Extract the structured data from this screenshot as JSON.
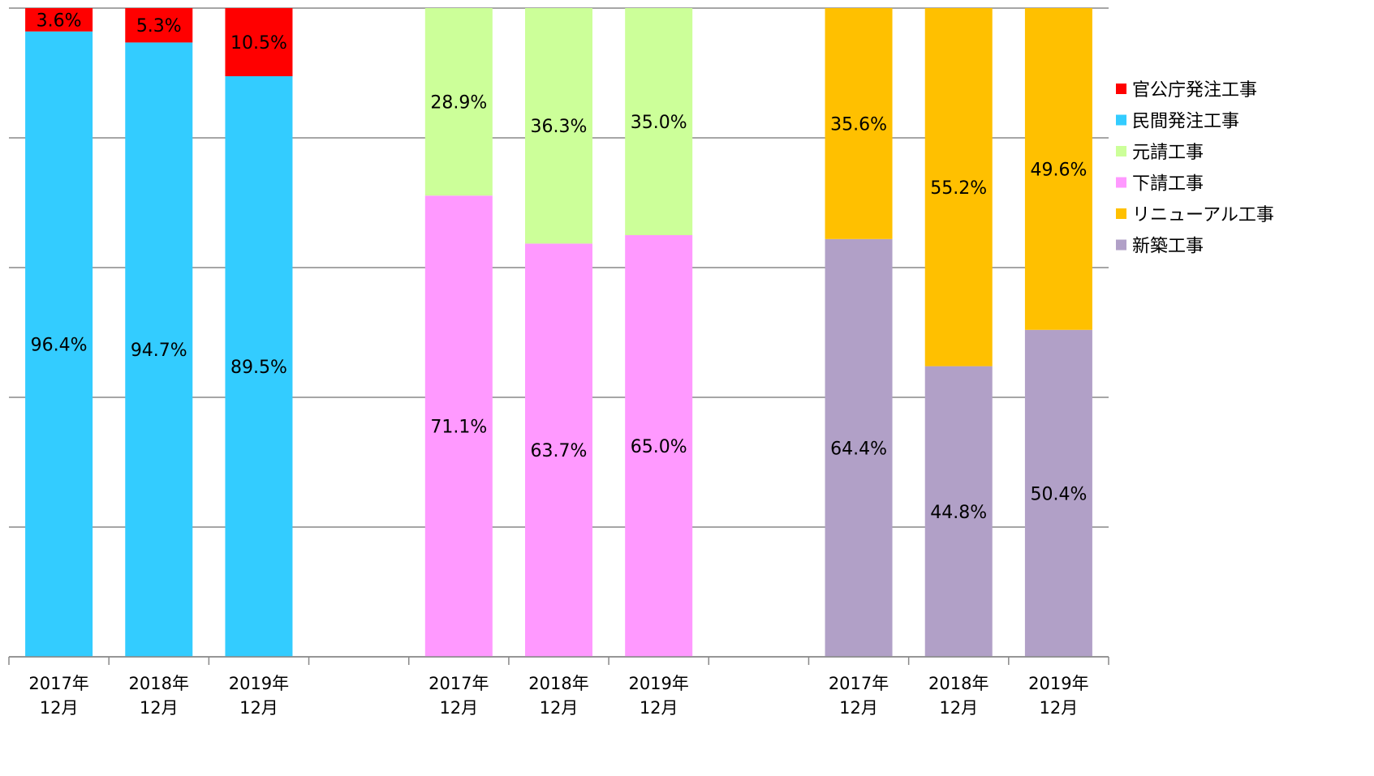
{
  "chart_data": {
    "type": "bar",
    "stacked": true,
    "normalized_100_percent": true,
    "categories": [
      [
        "2017年",
        "12月"
      ],
      [
        "2018年",
        "12月"
      ],
      [
        "2019年",
        "12月"
      ],
      "",
      [
        "2017年",
        "12月"
      ],
      [
        "2018年",
        "12月"
      ],
      [
        "2019年",
        "12月"
      ],
      "",
      [
        "2017年",
        "12月"
      ],
      [
        "2018年",
        "12月"
      ],
      [
        "2019年",
        "12月"
      ]
    ],
    "series": [
      {
        "name": "新築工事",
        "color": "#B1A0C7",
        "values": [
          null,
          null,
          null,
          null,
          null,
          null,
          null,
          null,
          64.4,
          44.8,
          50.4
        ],
        "labels": [
          "",
          "",
          "",
          "",
          "",
          "",
          "",
          "",
          "64.4%",
          "44.8%",
          "50.4%"
        ]
      },
      {
        "name": "リニューアル工事",
        "color": "#FFC000",
        "values": [
          null,
          null,
          null,
          null,
          null,
          null,
          null,
          null,
          35.6,
          55.2,
          49.6
        ],
        "labels": [
          "",
          "",
          "",
          "",
          "",
          "",
          "",
          "",
          "35.6%",
          "55.2%",
          "49.6%"
        ]
      },
      {
        "name": "下請工事",
        "color": "#FF99FF",
        "values": [
          null,
          null,
          null,
          null,
          71.1,
          63.7,
          65.0,
          null,
          null,
          null,
          null
        ],
        "labels": [
          "",
          "",
          "",
          "",
          "71.1%",
          "63.7%",
          "65.0%",
          "",
          "",
          "",
          ""
        ]
      },
      {
        "name": "元請工事",
        "color": "#CCFF99",
        "values": [
          null,
          null,
          null,
          null,
          28.9,
          36.3,
          35.0,
          null,
          null,
          null,
          null
        ],
        "labels": [
          "",
          "",
          "",
          "",
          "28.9%",
          "36.3%",
          "35.0%",
          "",
          "",
          "",
          ""
        ]
      },
      {
        "name": "民間発注工事",
        "color": "#33CCFF",
        "values": [
          96.4,
          94.7,
          89.5,
          null,
          null,
          null,
          null,
          null,
          null,
          null,
          null
        ],
        "labels": [
          "96.4%",
          "94.7%",
          "89.5%",
          "",
          "",
          "",
          "",
          "",
          "",
          "",
          ""
        ]
      },
      {
        "name": "官公庁発注工事",
        "color": "#FF0000",
        "values": [
          3.6,
          5.3,
          10.5,
          null,
          null,
          null,
          null,
          null,
          null,
          null,
          null
        ],
        "labels": [
          "3.6%",
          "5.3%",
          "10.5%",
          "",
          "",
          "",
          "",
          "",
          "",
          "",
          ""
        ]
      }
    ],
    "legend": {
      "position": "right",
      "order": [
        "官公庁発注工事",
        "民間発注工事",
        "元請工事",
        "下請工事",
        "リニューアル工事",
        "新築工事"
      ]
    },
    "ylim": [
      0,
      100
    ],
    "gridlines": [
      0,
      20,
      40,
      60,
      80,
      100
    ],
    "grid": true,
    "y_tick_labels_visible": false
  }
}
